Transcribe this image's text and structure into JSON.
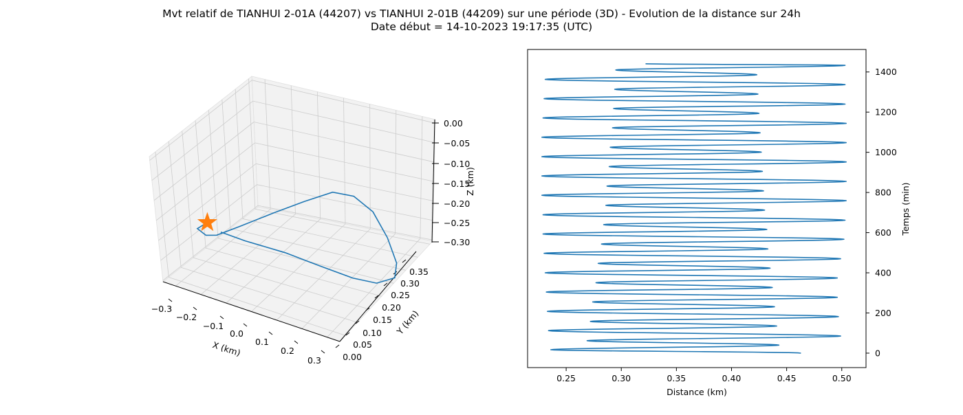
{
  "title_line1": "Mvt relatif de TIANHUI 2-01A (44207) vs TIANHUI 2-01B (44209) sur une période (3D) - Evolution de la distance sur 24h",
  "title_line2": "Date début = 14-10-2023 19:17:35 (UTC)",
  "colors": {
    "series": "#1f77b4",
    "marker": "#ff7f0e",
    "pane": "#f2f2f2",
    "grid": "#cccccc"
  },
  "chart_data": [
    {
      "type": "line3d",
      "xlabel": "X (km)",
      "ylabel": "Y (km)",
      "zlabel": "Z (km)",
      "xticks": [
        "−0.3",
        "−0.2",
        "−0.1",
        "0.0",
        "0.1",
        "0.2",
        "0.3"
      ],
      "yticks": [
        "0.00",
        "0.05",
        "0.10",
        "0.15",
        "0.20",
        "0.25",
        "0.30",
        "0.35"
      ],
      "zticks": [
        "0.00",
        "−0.05",
        "−0.10",
        "−0.15",
        "−0.20",
        "−0.25",
        "−0.30"
      ],
      "xlim": [
        -0.33,
        0.33
      ],
      "ylim": [
        0,
        0.37
      ],
      "zlim": [
        -0.31,
        0.0
      ],
      "start_marker": "star",
      "series": [
        {
          "points": [
            [
              -0.2,
              0.05,
              -0.16
            ],
            [
              -0.29,
              0.1,
              -0.22
            ],
            [
              -0.33,
              0.17,
              -0.28
            ],
            [
              -0.33,
              0.21,
              -0.3
            ],
            [
              -0.28,
              0.25,
              -0.29
            ],
            [
              -0.17,
              0.27,
              -0.25
            ],
            [
              -0.06,
              0.28,
              -0.21
            ],
            [
              0.05,
              0.28,
              -0.17
            ],
            [
              0.14,
              0.27,
              -0.16
            ],
            [
              0.22,
              0.26,
              -0.18
            ],
            [
              0.29,
              0.24,
              -0.22
            ],
            [
              0.33,
              0.23,
              -0.27
            ],
            [
              0.33,
              0.22,
              -0.3
            ],
            [
              0.29,
              0.19,
              -0.3
            ],
            [
              0.24,
              0.15,
              -0.27
            ],
            [
              0.16,
              0.11,
              -0.23
            ],
            [
              0.07,
              0.07,
              -0.19
            ],
            [
              -0.04,
              0.03,
              -0.16
            ],
            [
              -0.12,
              0.02,
              -0.15
            ]
          ]
        }
      ]
    },
    {
      "type": "line",
      "xlabel": "Distance (km)",
      "ylabel": "Temps (min)",
      "xlim": [
        0.215,
        0.522
      ],
      "ylim": [
        -72,
        1512
      ],
      "xticks": [
        0.25,
        0.3,
        0.35,
        0.4,
        0.45,
        0.5
      ],
      "xtick_labels": [
        "0.25",
        "0.30",
        "0.35",
        "0.40",
        "0.45",
        "0.50"
      ],
      "yticks": [
        0,
        200,
        400,
        600,
        800,
        1000,
        1200,
        1400
      ],
      "ytick_labels": [
        "0",
        "200",
        "400",
        "600",
        "800",
        "1000",
        "1200",
        "1400"
      ],
      "yaxis_side": "right",
      "series": [
        {
          "turning_points": [
            [
              0.463,
              0
            ],
            [
              0.236,
              17
            ],
            [
              0.443,
              40
            ],
            [
              0.269,
              62
            ],
            [
              0.499,
              85
            ],
            [
              0.234,
              112
            ],
            [
              0.441,
              135
            ],
            [
              0.272,
              158
            ],
            [
              0.497,
              182
            ],
            [
              0.233,
              208
            ],
            [
              0.439,
              231
            ],
            [
              0.274,
              255
            ],
            [
              0.496,
              278
            ],
            [
              0.232,
              304
            ],
            [
              0.437,
              327
            ],
            [
              0.277,
              351
            ],
            [
              0.496,
              374
            ],
            [
              0.231,
              400
            ],
            [
              0.435,
              423
            ],
            [
              0.279,
              447
            ],
            [
              0.499,
              470
            ],
            [
              0.23,
              497
            ],
            [
              0.433,
              519
            ],
            [
              0.282,
              543
            ],
            [
              0.502,
              567
            ],
            [
              0.229,
              593
            ],
            [
              0.432,
              616
            ],
            [
              0.284,
              640
            ],
            [
              0.503,
              662
            ],
            [
              0.229,
              689
            ],
            [
              0.43,
              712
            ],
            [
              0.286,
              736
            ],
            [
              0.504,
              759
            ],
            [
              0.228,
              786
            ],
            [
              0.429,
              808
            ],
            [
              0.287,
              832
            ],
            [
              0.504,
              855
            ],
            [
              0.228,
              882
            ],
            [
              0.428,
              905
            ],
            [
              0.289,
              929
            ],
            [
              0.504,
              952
            ],
            [
              0.228,
              978
            ],
            [
              0.427,
              1001
            ],
            [
              0.29,
              1025
            ],
            [
              0.504,
              1048
            ],
            [
              0.228,
              1075
            ],
            [
              0.426,
              1097
            ],
            [
              0.292,
              1122
            ],
            [
              0.504,
              1144
            ],
            [
              0.229,
              1171
            ],
            [
              0.425,
              1194
            ],
            [
              0.293,
              1218
            ],
            [
              0.503,
              1240
            ],
            [
              0.23,
              1267
            ],
            [
              0.424,
              1290
            ],
            [
              0.294,
              1314
            ],
            [
              0.503,
              1337
            ],
            [
              0.231,
              1363
            ],
            [
              0.423,
              1386
            ],
            [
              0.295,
              1410
            ],
            [
              0.503,
              1433
            ],
            [
              0.322,
              1441
            ]
          ]
        }
      ]
    }
  ]
}
